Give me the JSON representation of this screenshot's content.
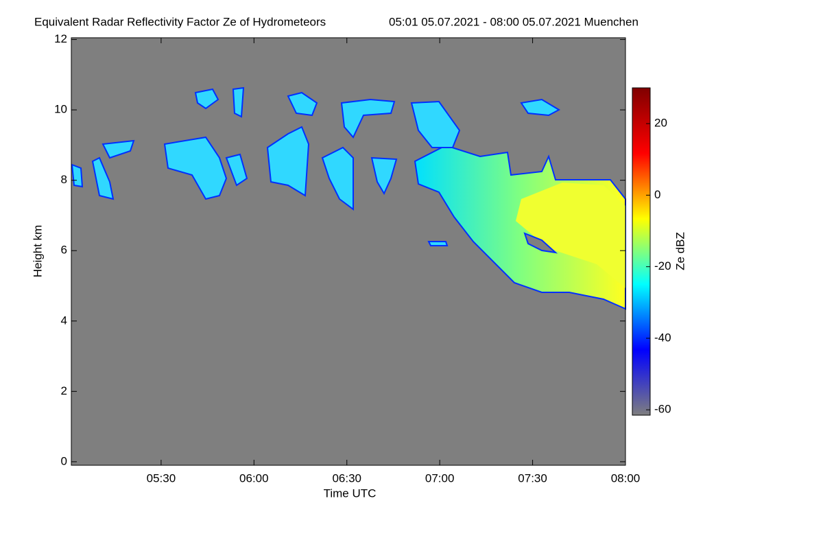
{
  "chart_data": {
    "type": "heatmap",
    "title": "Equivalent Radar Reflectivity Factor Ze of Hydrometeors",
    "subtitle": "05:01 05.07.2021 - 08:00 05.07.2021 Muenchen",
    "x_label": "Time UTC",
    "y_label": "Height km",
    "colorbar_label": "Ze dBZ",
    "xlim": [
      301,
      480
    ],
    "xticks": [
      {
        "value": 330,
        "label": "05:30"
      },
      {
        "value": 360,
        "label": "06:00"
      },
      {
        "value": 390,
        "label": "06:30"
      },
      {
        "value": 420,
        "label": "07:00"
      },
      {
        "value": 450,
        "label": "07:30"
      },
      {
        "value": 480,
        "label": "08:00"
      }
    ],
    "ylim": [
      -0.1,
      12.05
    ],
    "yticks": [
      0,
      2,
      4,
      6,
      8,
      10,
      12
    ],
    "clim": [
      -61.5,
      30
    ],
    "cticks": [
      -60,
      -40,
      -20,
      0,
      20
    ],
    "background_color": "#7f7f7f",
    "colormap": [
      "#7f7f7f",
      "#0000ff",
      "#00ffff",
      "#ffff00",
      "#ff0000",
      "#800000"
    ]
  }
}
